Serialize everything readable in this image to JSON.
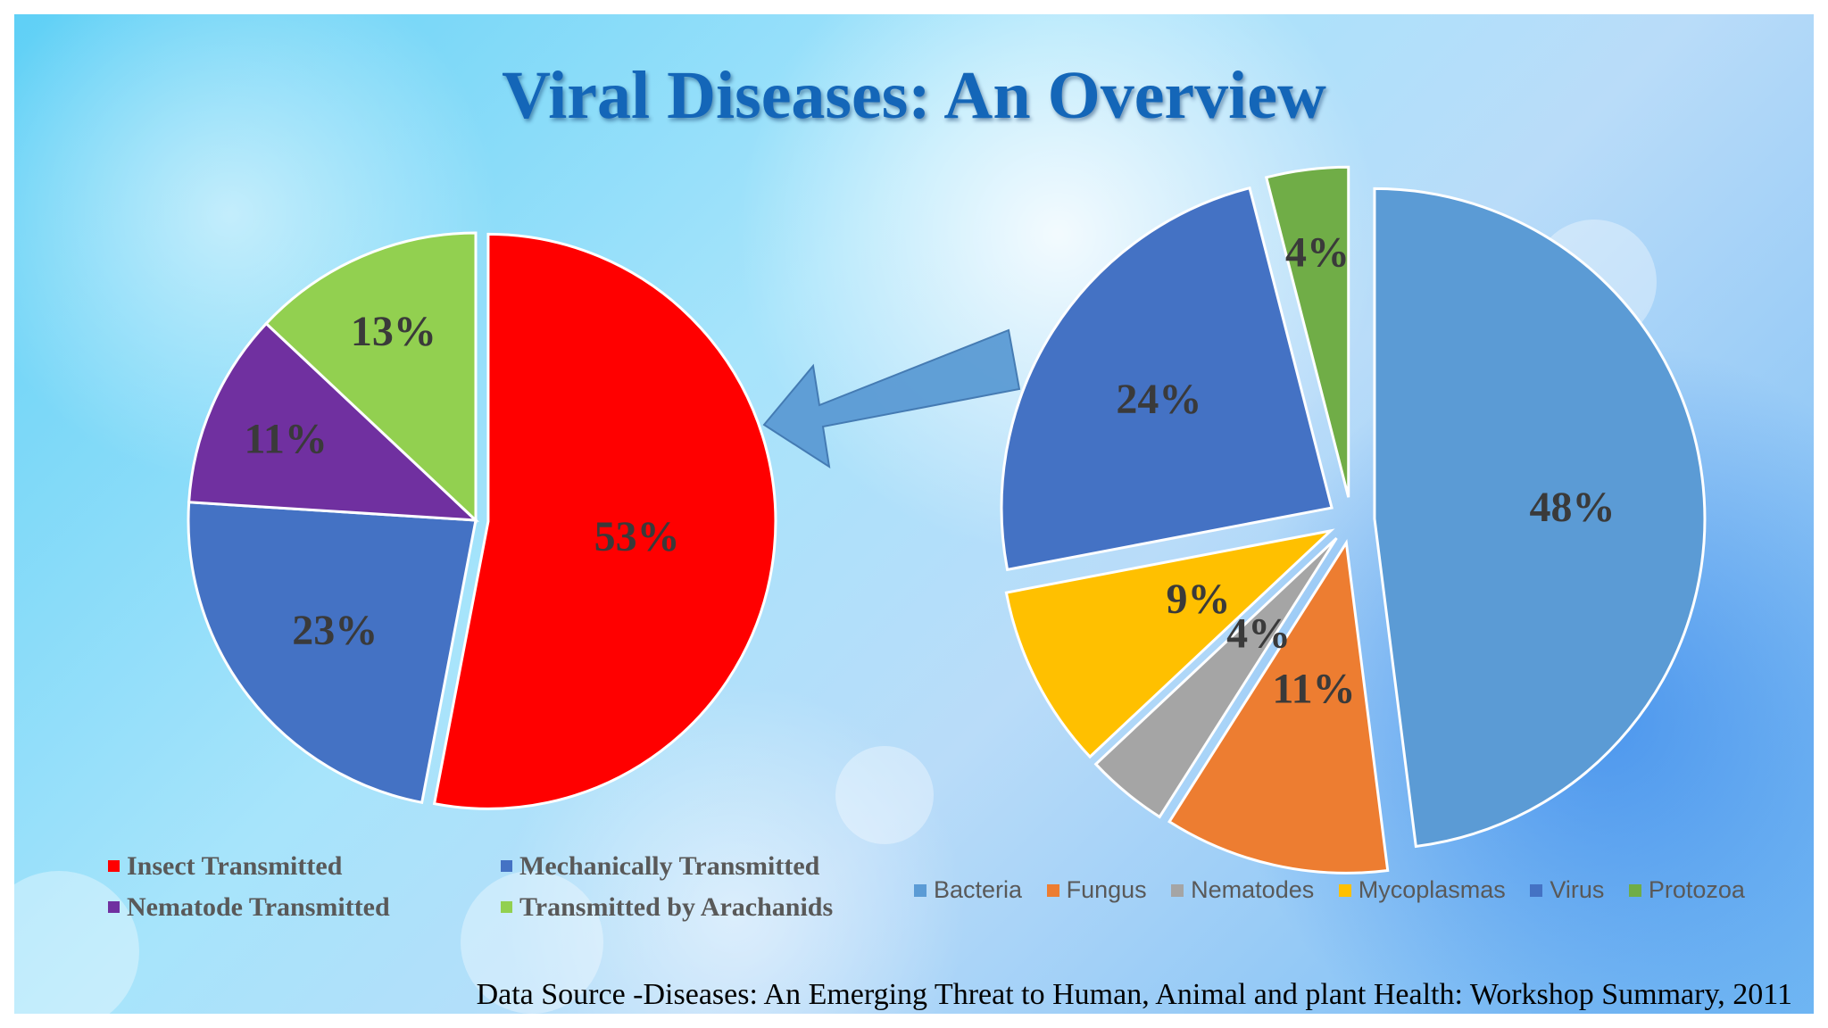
{
  "title": "Viral Diseases: An Overview",
  "source": "Data Source -Diseases: An Emerging Threat to Human, Animal and plant Health: Workshop Summary, 2011",
  "chart_data": [
    {
      "type": "pie",
      "title": "",
      "categories": [
        "Insect Transmitted",
        "Mechanically Transmitted",
        "Nematode Transmitted",
        "Transmitted by Arachanids"
      ],
      "values": [
        53,
        23,
        11,
        13
      ],
      "labels": [
        "53%",
        "23%",
        "11%",
        "13%"
      ],
      "colors": [
        "#ff0000",
        "#4472c4",
        "#7030a0",
        "#92d050"
      ],
      "exploded": "Insect Transmitted",
      "legend_position": "bottom"
    },
    {
      "type": "pie",
      "title": "",
      "categories": [
        "Bacteria",
        "Fungus",
        "Nematodes",
        "Mycoplasmas",
        "Virus",
        "Protozoa"
      ],
      "values": [
        48,
        11,
        4,
        9,
        24,
        4
      ],
      "labels": [
        "48%",
        "11%",
        "4%",
        "9%",
        "24%",
        "4%"
      ],
      "colors": [
        "#5b9bd5",
        "#ed7d31",
        "#a5a5a5",
        "#ffc000",
        "#4472c4",
        "#70ad47"
      ],
      "exploded": "all",
      "legend_position": "bottom"
    }
  ],
  "arrow": {
    "from": "Virus",
    "to": "left-chart",
    "color": "#5b9bd5"
  }
}
